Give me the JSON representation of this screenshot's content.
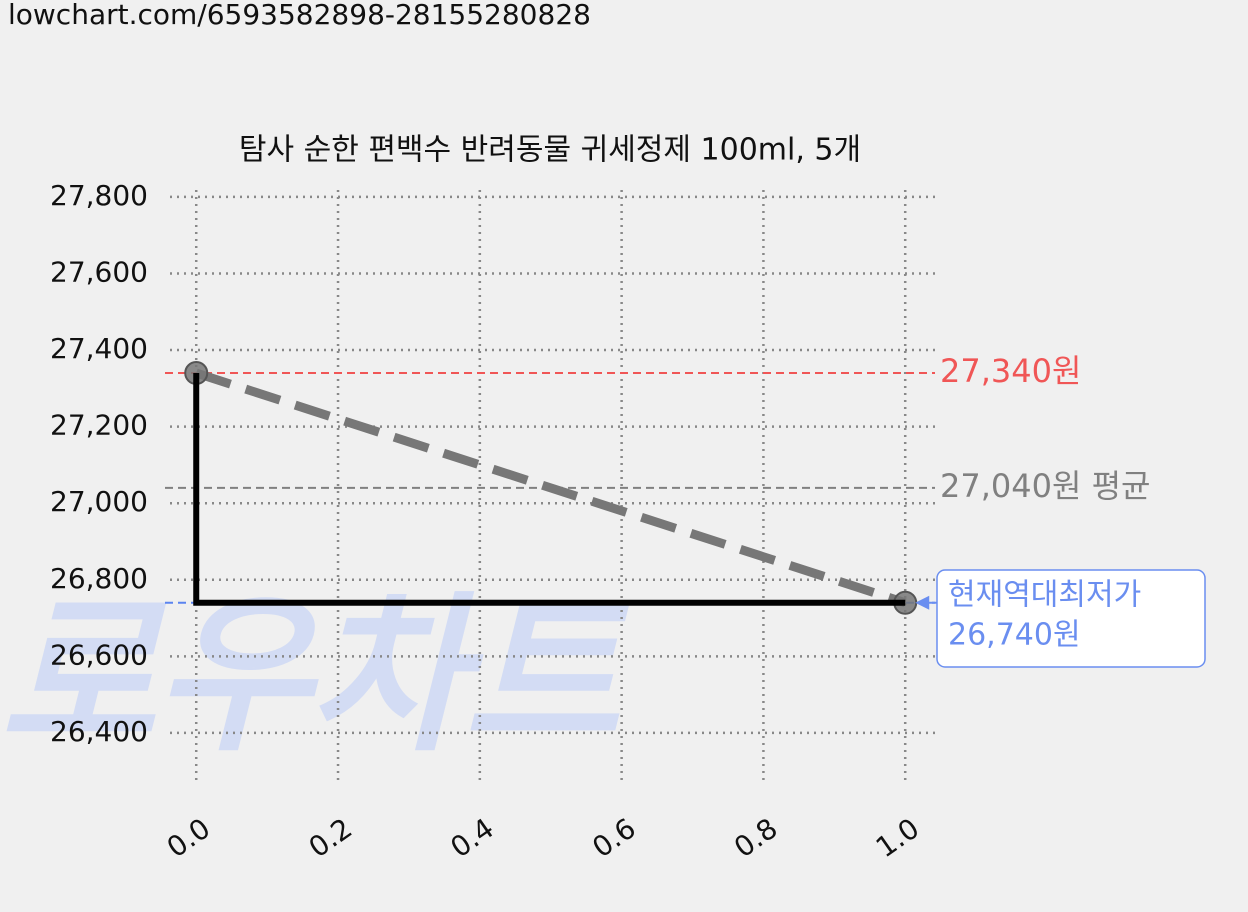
{
  "header": {
    "url": "lowchart.com/6593582898-28155280828"
  },
  "chart_data": {
    "type": "line",
    "title": "탐사 순한 편백수 반려동물 귀세정제 100ml, 5개",
    "watermark": "로우차트",
    "x": [
      0,
      1
    ],
    "series": [
      {
        "color": "#777777",
        "style": "dashed",
        "marker": true,
        "values": [
          27340,
          26740
        ]
      },
      {
        "color": "#000000",
        "step": "pre",
        "values": [
          27340,
          26740
        ]
      }
    ],
    "xlim": [
      -0.037,
      1.042
    ],
    "ylim": [
      26264,
      27818
    ],
    "xticks": [
      {
        "value": 0,
        "label": "0.0"
      },
      0.2,
      0.4,
      0.6,
      0.8,
      {
        "value": 1,
        "label": "1.0"
      }
    ],
    "yticks": [
      {
        "value": 26400,
        "label": "26,400"
      },
      {
        "value": 26600,
        "label": "26,600"
      },
      {
        "value": 26800,
        "label": "26,800"
      },
      {
        "value": 27000,
        "label": "27,000"
      },
      {
        "value": 27200,
        "label": "27,200"
      },
      {
        "value": 27400,
        "label": "27,400"
      },
      {
        "value": 27600,
        "label": "27,600"
      },
      {
        "value": 27800,
        "label": "27,800"
      }
    ],
    "grid": true,
    "hlines": [
      {
        "value": 27340,
        "label": "27,340원",
        "color": "#f05656"
      },
      {
        "value": 27040,
        "label": "27,040원 평균",
        "color": "#808080"
      },
      {
        "value": 26740,
        "color": "#5b84f0"
      }
    ],
    "annotation": {
      "x": 1,
      "y": 26740,
      "lines": [
        "현재역대최저가",
        "26,740원"
      ],
      "color": "#6a8ef0"
    }
  }
}
